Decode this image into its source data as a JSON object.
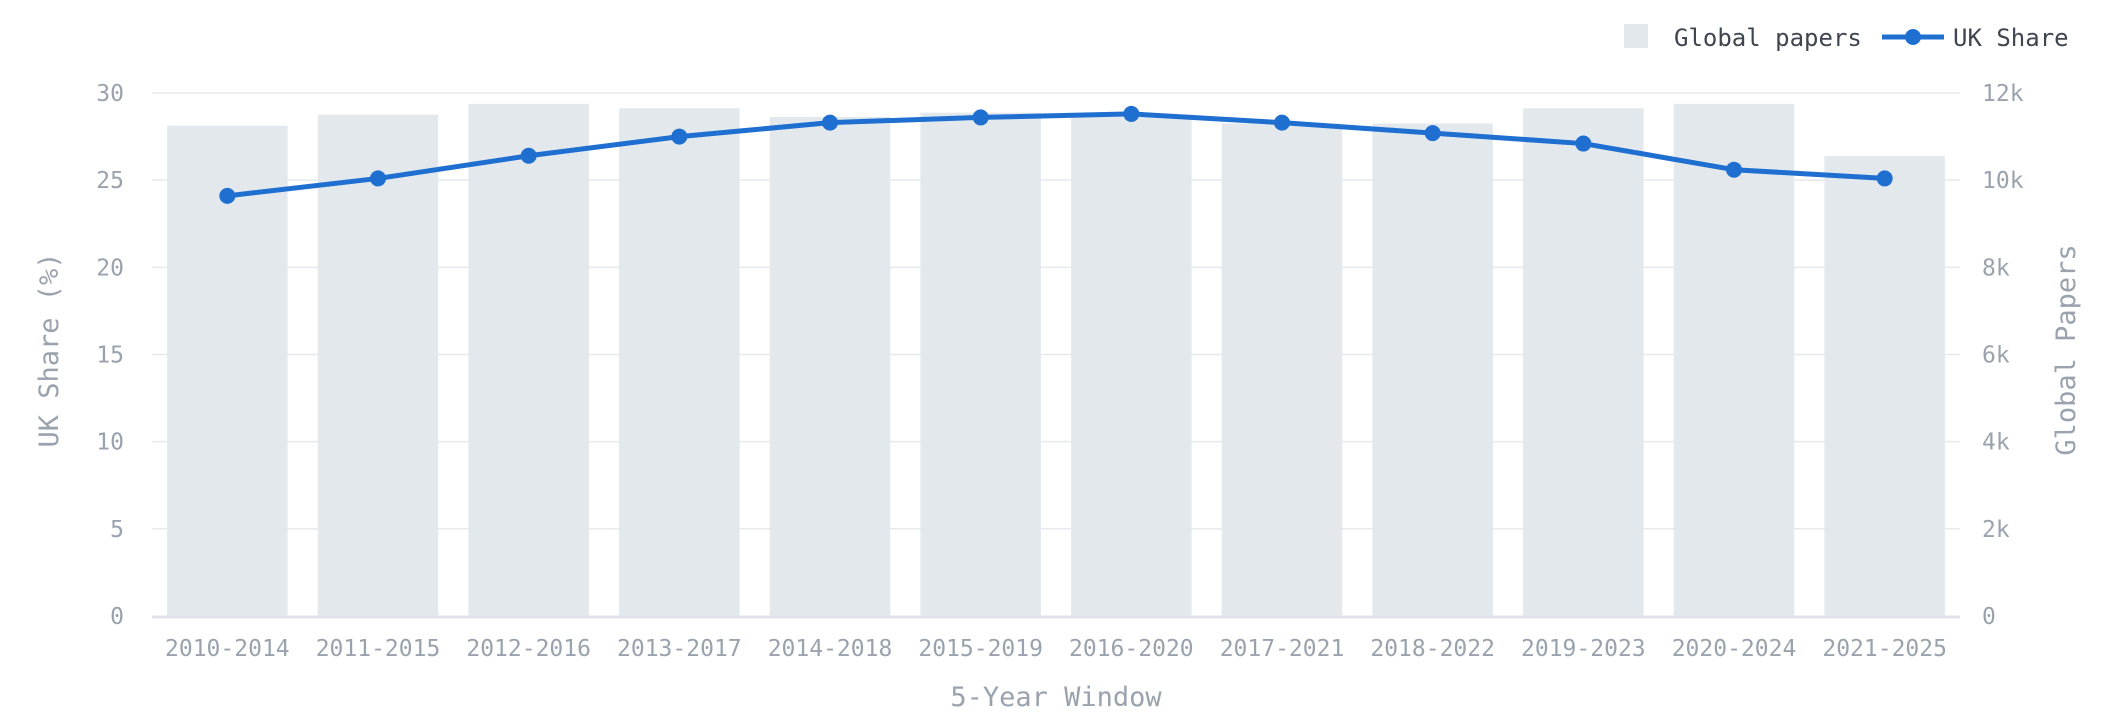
{
  "chart_data": {
    "type": "bar",
    "categories": [
      "2010-2014",
      "2011-2015",
      "2012-2016",
      "2013-2017",
      "2014-2018",
      "2015-2019",
      "2016-2020",
      "2017-2021",
      "2018-2022",
      "2019-2023",
      "2020-2024",
      "2021-2025"
    ],
    "series": [
      {
        "name": "Global papers",
        "type": "bar",
        "axis": "right",
        "values": [
          11250,
          11500,
          11750,
          11650,
          11450,
          11550,
          11500,
          11300,
          11300,
          11650,
          11750,
          10550
        ]
      },
      {
        "name": "UK Share",
        "type": "line",
        "axis": "left",
        "values": [
          24.1,
          25.1,
          26.4,
          27.5,
          28.3,
          28.6,
          28.8,
          28.3,
          27.7,
          27.1,
          25.6,
          25.1
        ]
      }
    ],
    "xlabel": "5-Year Window",
    "ylabel": "UK Share (%)",
    "y2label": "Global Papers",
    "ylim": [
      0,
      30
    ],
    "y2lim": [
      0,
      12000
    ],
    "yticks": [
      "0",
      "5",
      "10",
      "15",
      "20",
      "25",
      "30"
    ],
    "y2ticks": [
      "0",
      "2k",
      "4k",
      "6k",
      "8k",
      "10k",
      "12k"
    ],
    "grid": true,
    "legend_position": "top-right",
    "colors": {
      "bar": "#e3e8ec",
      "line": "#1f6fd1",
      "grid": "#e6e9ed",
      "text": "#9aa3ad"
    }
  }
}
